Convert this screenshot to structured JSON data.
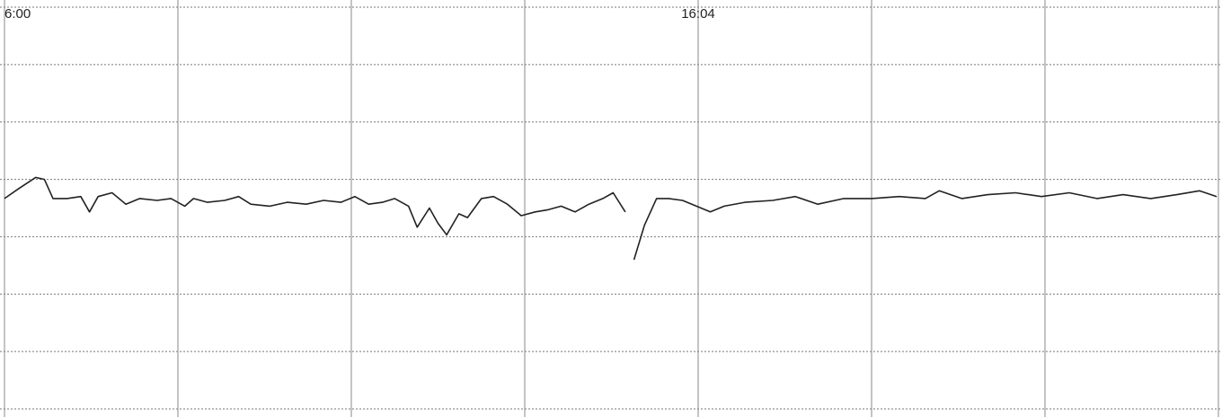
{
  "chart_data": {
    "type": "line",
    "x": [
      0,
      0.08,
      0.18,
      0.23,
      0.28,
      0.36,
      0.44,
      0.49,
      0.54,
      0.62,
      0.7,
      0.78,
      0.88,
      0.96,
      1.04,
      1.09,
      1.17,
      1.27,
      1.35,
      1.42,
      1.53,
      1.63,
      1.74,
      1.84,
      1.94,
      2.02,
      2.1,
      2.18,
      2.25,
      2.33,
      2.38,
      2.45,
      2.5,
      2.55,
      2.62,
      2.67,
      2.75,
      2.82,
      2.9,
      2.98,
      3.06,
      3.13,
      3.21,
      3.29,
      3.37,
      3.45,
      3.51,
      3.58,
      3.62,
      3.63,
      3.69,
      3.76,
      3.83,
      3.91,
      3.99,
      4.07,
      4.15,
      4.27,
      4.43,
      4.56,
      4.69,
      4.84,
      5.0,
      5.16,
      5.31,
      5.39,
      5.52,
      5.67,
      5.83,
      5.98,
      6.14,
      6.3,
      6.45,
      6.61,
      6.76,
      6.89,
      6.99
    ],
    "series": [
      {
        "color": "#222222",
        "values": [
          140,
          145,
          151,
          150,
          140,
          140,
          141,
          133,
          141,
          143,
          137,
          140,
          139,
          140,
          136,
          140,
          138,
          139,
          141,
          137,
          136,
          138,
          137,
          139,
          138,
          141,
          137,
          138,
          140,
          136,
          125,
          135,
          127,
          121,
          132,
          130,
          140,
          141,
          137,
          131,
          133,
          134,
          136,
          133,
          137,
          140,
          143,
          133,
          null,
          108,
          126,
          140,
          140,
          139,
          136,
          133,
          136,
          138,
          139,
          141,
          137,
          140,
          140,
          141,
          140,
          144,
          140,
          142,
          143,
          141,
          143,
          140,
          142,
          140,
          142,
          144,
          141
        ]
      }
    ],
    "xlim": [
      0,
      7.0
    ],
    "xticks": [
      {
        "value": 0,
        "label": "6:00"
      },
      {
        "value": 4,
        "label": "16:04"
      }
    ],
    "ylim": [
      30,
      240
    ],
    "yticks": [
      30,
      60,
      90,
      120,
      150,
      180,
      210,
      240
    ],
    "grid": true
  }
}
